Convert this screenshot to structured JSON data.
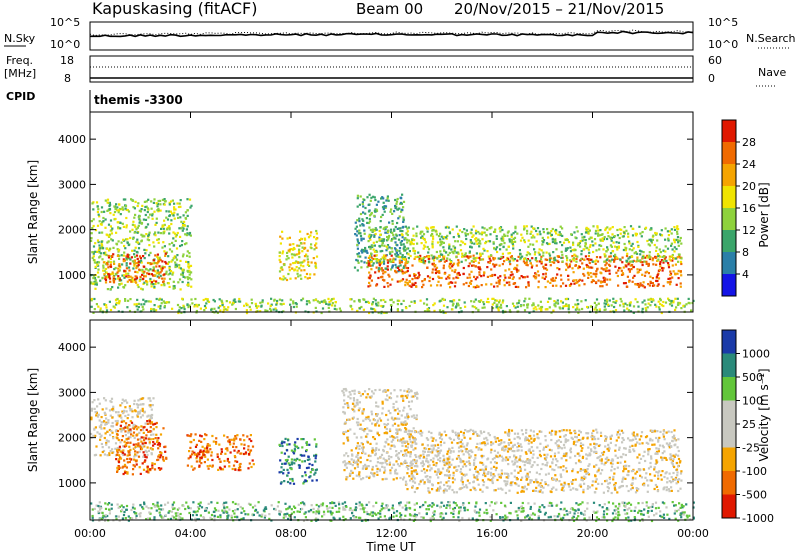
{
  "header": {
    "station": "Kapuskasing (fitACF)",
    "beam": "Beam 00",
    "dates": "20/Nov/2015 – 21/Nov/2015"
  },
  "strips": {
    "nsky_label": "N.Sky",
    "nsearch_label": "N.Search",
    "nsky_ticks": [
      "10^5",
      "10^0"
    ],
    "nsearch_ticks": [
      "10^5",
      "10^0"
    ],
    "freq_label_1": "Freq.",
    "freq_label_2": "[MHz]",
    "freq_ticks": [
      "18",
      "8"
    ],
    "nave_label": "Nave",
    "nave_ticks": [
      "60",
      "0"
    ],
    "cpid_label": "CPID",
    "cpid_text": "themis -3300"
  },
  "colors": {
    "power": [
      "#1414e6",
      "#2a7fa8",
      "#3aa56a",
      "#8ed23c",
      "#f0e400",
      "#f5a400",
      "#f06a00",
      "#e01800"
    ],
    "velocity": [
      "#e01800",
      "#f06a00",
      "#f5a400",
      "#c8c8c0",
      "#c8c8c0",
      "#62c63a",
      "#2a8a7a",
      "#1a3aa8"
    ]
  },
  "chart_data": [
    {
      "type": "heatmap",
      "panel": "power",
      "ylabel": "Slant Range [km]",
      "xlabel": "",
      "ylim": [
        180,
        4600
      ],
      "yticks": [
        1000,
        2000,
        3000,
        4000
      ],
      "xlim": [
        0,
        24
      ],
      "colorbar_label": "Power [dB]",
      "colorbar_ticks": [
        "4",
        "8",
        "12",
        "16",
        "20",
        "24",
        "28"
      ],
      "regions": [
        {
          "t0": 0.0,
          "t1": 4.0,
          "r0": 700,
          "r1": 2700,
          "level": 3
        },
        {
          "t0": 0.5,
          "t1": 3.0,
          "r0": 850,
          "r1": 1500,
          "level": 6
        },
        {
          "t0": 7.5,
          "t1": 9.0,
          "r0": 900,
          "r1": 2000,
          "level": 4
        },
        {
          "t0": 10.5,
          "t1": 12.5,
          "r0": 1100,
          "r1": 2800,
          "level": 2
        },
        {
          "t0": 11.0,
          "t1": 23.5,
          "r0": 750,
          "r1": 1450,
          "level": 6
        },
        {
          "t0": 11.0,
          "t1": 23.5,
          "r0": 1300,
          "r1": 2100,
          "level": 3
        },
        {
          "t0": 0.0,
          "t1": 24.0,
          "r0": 180,
          "r1": 500,
          "level": 3
        }
      ]
    },
    {
      "type": "heatmap",
      "panel": "velocity",
      "ylabel": "Slant Range [km]",
      "xlabel": "Time UT",
      "ylim": [
        180,
        4600
      ],
      "yticks": [
        1000,
        2000,
        3000,
        4000
      ],
      "xlim": [
        0,
        24
      ],
      "xticks": [
        "00:00",
        "04:00",
        "08:00",
        "12:00",
        "16:00",
        "20:00",
        "00:00"
      ],
      "colorbar_label": "Velocity [m s⁻¹]",
      "colorbar_ticks": [
        "1000",
        "500",
        "100",
        "25",
        "-25",
        "-100",
        "-500",
        "-1000"
      ],
      "regions": [
        {
          "t0": 0.0,
          "t1": 2.5,
          "r0": 1600,
          "r1": 2900,
          "level": 3
        },
        {
          "t0": 1.0,
          "t1": 3.0,
          "r0": 1200,
          "r1": 2400,
          "level": 1
        },
        {
          "t0": 3.8,
          "t1": 6.5,
          "r0": 1300,
          "r1": 2100,
          "level": 1
        },
        {
          "t0": 7.5,
          "t1": 9.0,
          "r0": 1000,
          "r1": 2000,
          "level": 6
        },
        {
          "t0": 10.0,
          "t1": 13.0,
          "r0": 1100,
          "r1": 3100,
          "level": 3
        },
        {
          "t0": 12.5,
          "t1": 23.5,
          "r0": 800,
          "r1": 2200,
          "level": 3
        },
        {
          "t0": 0.0,
          "t1": 24.0,
          "r0": 180,
          "r1": 600,
          "level": 5
        }
      ]
    }
  ]
}
